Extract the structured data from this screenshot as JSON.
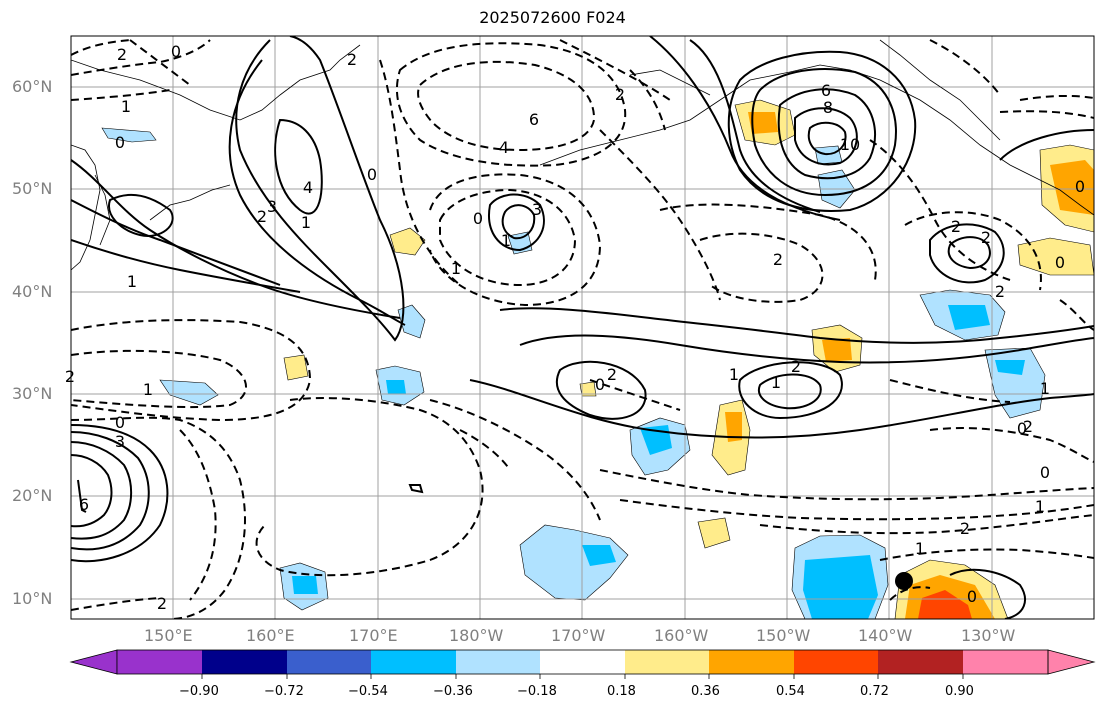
{
  "title": "2025072600 F024",
  "latitude_labels": [
    "60°N",
    "50°N",
    "40°N",
    "30°N",
    "20°N",
    "10°N"
  ],
  "longitude_labels": [
    "150°E",
    "160°E",
    "170°E",
    "180°W",
    "170°W",
    "160°W",
    "150°W",
    "140°W",
    "130°W"
  ],
  "colorbar": {
    "labels": [
      "−0.90",
      "−0.72",
      "−0.54",
      "−0.36",
      "−0.18",
      "0.18",
      "0.36",
      "0.54",
      "0.72",
      "0.90"
    ],
    "colors": [
      "#9932cc",
      "#00008b",
      "#3a5fcd",
      "#00bfff",
      "#b0e2ff",
      "#ffffff",
      "#ffec8b",
      "#ffa500",
      "#ff4500",
      "#b22222",
      "#ff82ab"
    ]
  },
  "contour_labels": [
    "0",
    "2",
    "1",
    "0",
    "0",
    "2",
    "3",
    "4",
    "2",
    "6",
    "4",
    "0",
    "3",
    "1",
    "1",
    "2",
    "1",
    "0",
    "3",
    "6",
    "8",
    "10",
    "2",
    "2",
    "1",
    "0",
    "2",
    "1",
    "2",
    "2",
    "1",
    "2",
    "0",
    "1",
    "2",
    "1",
    "2",
    "0",
    "0",
    "2",
    "6",
    "0",
    "0",
    "1",
    "2",
    "1"
  ],
  "marker": {
    "label": "",
    "color": "#000000"
  }
}
